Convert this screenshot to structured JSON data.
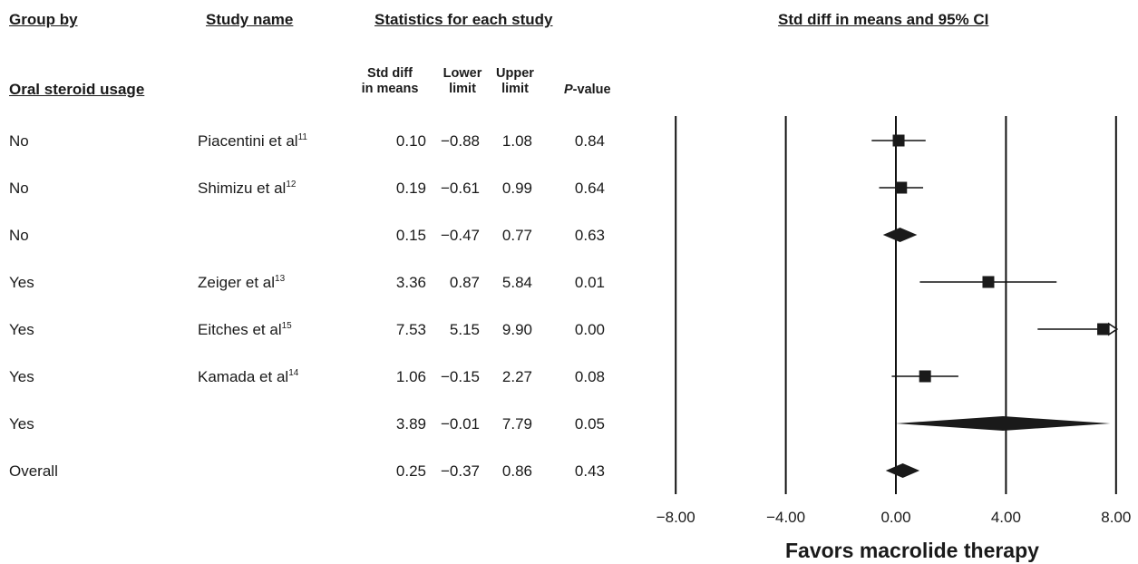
{
  "headers": {
    "group_by": "Group by",
    "study_name": "Study name",
    "statistics": "Statistics for each study",
    "plot_title": "Std diff in means and 95% CI",
    "subgroup": "Oral steroid usage",
    "std_diff_line1": "Std diff",
    "std_diff_line2": "in means",
    "lower_line1": "Lower",
    "lower_line2": "limit",
    "upper_line1": "Upper",
    "upper_line2": "limit",
    "pvalue_italic": "P",
    "pvalue_rest": "-value"
  },
  "rows": [
    {
      "group": "No",
      "study": "Piacentini et al",
      "ref": "11",
      "sd": "0.10",
      "lower": "−0.88",
      "upper": "1.08",
      "p": "0.84"
    },
    {
      "group": "No",
      "study": "Shimizu et al",
      "ref": "12",
      "sd": "0.19",
      "lower": "−0.61",
      "upper": "0.99",
      "p": "0.64"
    },
    {
      "group": "No",
      "study": "",
      "ref": "",
      "sd": "0.15",
      "lower": "−0.47",
      "upper": "0.77",
      "p": "0.63"
    },
    {
      "group": "Yes",
      "study": "Zeiger et al",
      "ref": "13",
      "sd": "3.36",
      "lower": "0.87",
      "upper": "5.84",
      "p": "0.01"
    },
    {
      "group": "Yes",
      "study": "Eitches et al",
      "ref": "15",
      "sd": "7.53",
      "lower": "5.15",
      "upper": "9.90",
      "p": "0.00"
    },
    {
      "group": "Yes",
      "study": "Kamada et al",
      "ref": "14",
      "sd": "1.06",
      "lower": "−0.15",
      "upper": "2.27",
      "p": "0.08"
    },
    {
      "group": "Yes",
      "study": "",
      "ref": "",
      "sd": "3.89",
      "lower": "−0.01",
      "upper": "7.79",
      "p": "0.05"
    },
    {
      "group": "Overall",
      "study": "",
      "ref": "",
      "sd": "0.25",
      "lower": "−0.37",
      "upper": "0.86",
      "p": "0.43"
    }
  ],
  "chart_data": {
    "type": "forest",
    "title": "Std diff in means and 95% CI",
    "xlabel": "Favors macrolide therapy",
    "xlim": [
      -8,
      8
    ],
    "ticks": [
      -8,
      -4,
      0,
      4,
      8
    ],
    "tick_labels": [
      "−8.00",
      "−4.00",
      "0.00",
      "4.00",
      "8.00"
    ],
    "points": [
      {
        "kind": "study",
        "est": 0.1,
        "lo": -0.88,
        "hi": 1.08
      },
      {
        "kind": "study",
        "est": 0.19,
        "lo": -0.61,
        "hi": 0.99
      },
      {
        "kind": "summary",
        "est": 0.15,
        "lo": -0.47,
        "hi": 0.77
      },
      {
        "kind": "study",
        "est": 3.36,
        "lo": 0.87,
        "hi": 5.84
      },
      {
        "kind": "study",
        "est": 7.53,
        "lo": 5.15,
        "hi": 9.9
      },
      {
        "kind": "study",
        "est": 1.06,
        "lo": -0.15,
        "hi": 2.27
      },
      {
        "kind": "summary",
        "est": 3.89,
        "lo": -0.01,
        "hi": 7.79
      },
      {
        "kind": "summary",
        "est": 0.25,
        "lo": -0.37,
        "hi": 0.86
      }
    ]
  }
}
